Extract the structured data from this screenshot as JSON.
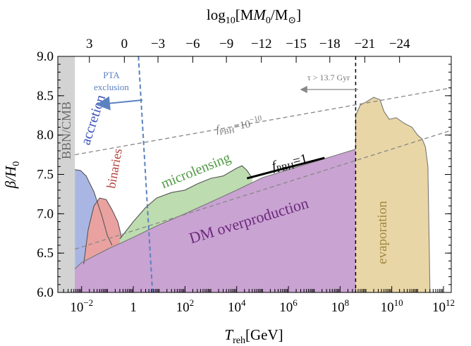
{
  "chart_data": {
    "type": "area",
    "xscale": "log",
    "xlabel_main": "T",
    "xlabel_sub": "reh",
    "xlabel_unit": "[GeV]",
    "ylabel_main": "β/H",
    "ylabel_sub": "0",
    "toplabel_pre": "log",
    "toplabel_sub": "10",
    "toplabel_post": "[M",
    "toplabel_sub2": "0",
    "toplabel_mid": "/M",
    "toplabel_sub3": "⊙",
    "toplabel_end": "]",
    "xlim": [
      0.0012,
      2000000000000.0
    ],
    "ylim": [
      6.0,
      9.0
    ],
    "x_ticks": [
      {
        "value": 0.01,
        "base": "10",
        "exp": "−2"
      },
      {
        "value": 1,
        "base": "1",
        "exp": ""
      },
      {
        "value": 100,
        "base": "10",
        "exp": "2"
      },
      {
        "value": 10000,
        "base": "10",
        "exp": "4"
      },
      {
        "value": 1000000,
        "base": "10",
        "exp": "6"
      },
      {
        "value": 100000000,
        "base": "10",
        "exp": "8"
      },
      {
        "value": 10000000000,
        "base": "10",
        "exp": "10"
      },
      {
        "value": 1000000000000,
        "base": "10",
        "exp": "12"
      }
    ],
    "y_ticks": [
      "6.0",
      "6.5",
      "7.0",
      "7.5",
      "8.0",
      "8.5",
      "9.0"
    ],
    "top_ticks": [
      {
        "label": "3",
        "x": 0.02
      },
      {
        "label": "0",
        "x": 0.45
      },
      {
        "label": "−3",
        "x": 9
      },
      {
        "label": "−6",
        "x": 200
      },
      {
        "label": "−9",
        "x": 4000
      },
      {
        "label": "−12",
        "x": 90000
      },
      {
        "label": "−15",
        "x": 2000000
      },
      {
        "label": "−18",
        "x": 40000000
      },
      {
        "label": "−21",
        "x": 900000000
      },
      {
        "label": "−24",
        "x": 20000000000
      }
    ],
    "bbn_cmb": {
      "x_max": 0.0055,
      "label": "BBN/CMB",
      "color": "#d3d3d3"
    },
    "pta": {
      "x": 2.3,
      "label_line1": "PTA",
      "label_line2": "exclusion",
      "color": "#5b82c0"
    },
    "tau_line": {
      "x": 400000000,
      "label": "τ > 13.7 Gyr"
    },
    "f_pbh_lines": [
      {
        "label_main": "f",
        "label_sub": "PBH",
        "label_value": "=10",
        "label_exp": "−10",
        "points": [
          [
            0.0055,
            7.75
          ],
          [
            2000000000000.0,
            8.6
          ]
        ]
      },
      {
        "label_main": "",
        "points": [
          [
            0.0055,
            6.55
          ],
          [
            2000000000000.0,
            8.06
          ]
        ]
      }
    ],
    "f_pbh_one": {
      "label_main": "f",
      "label_sub": "PBH",
      "label_value": "=1",
      "points": [
        [
          25000,
          7.45
        ],
        [
          25000000,
          7.71
        ]
      ]
    },
    "regions": [
      {
        "name": "DM overproduction",
        "color": "#c9a3d2",
        "boundary": [
          [
            0.0055,
            6.3
          ],
          [
            0.01,
            6.38
          ],
          [
            0.1,
            6.55
          ],
          [
            1,
            6.7
          ],
          [
            10,
            6.86
          ],
          [
            100,
            7.0
          ],
          [
            1000,
            7.15
          ],
          [
            10000,
            7.3
          ],
          [
            100000,
            7.46
          ],
          [
            1000000,
            7.56
          ],
          [
            10000000,
            7.66
          ],
          [
            100000000,
            7.76
          ],
          [
            400000000,
            7.82
          ]
        ]
      },
      {
        "name": "accretion",
        "color": "#a9b6e4",
        "boundary": [
          [
            0.0055,
            7.56
          ],
          [
            0.009,
            7.55
          ],
          [
            0.015,
            7.48
          ],
          [
            0.03,
            7.28
          ],
          [
            0.06,
            6.98
          ],
          [
            0.1,
            6.72
          ],
          [
            0.15,
            6.6
          ]
        ]
      },
      {
        "name": "binaries",
        "color": "#e9a2a0",
        "boundary": [
          [
            0.012,
            6.36
          ],
          [
            0.018,
            6.8
          ],
          [
            0.03,
            7.1
          ],
          [
            0.05,
            7.2
          ],
          [
            0.09,
            7.18
          ],
          [
            0.15,
            7.05
          ],
          [
            0.25,
            6.9
          ],
          [
            0.35,
            6.7
          ]
        ]
      },
      {
        "name": "microlensing",
        "color": "#bddcb0",
        "boundary": [
          [
            0.3,
            6.68
          ],
          [
            1,
            6.9
          ],
          [
            3,
            7.08
          ],
          [
            8,
            7.2
          ],
          [
            30,
            7.27
          ],
          [
            100,
            7.3
          ],
          [
            300,
            7.38
          ],
          [
            1000,
            7.45
          ],
          [
            3000,
            7.48
          ],
          [
            10000,
            7.58
          ],
          [
            16000,
            7.61
          ],
          [
            25000,
            7.55
          ],
          [
            40000,
            7.45
          ]
        ]
      },
      {
        "name": "evaporation",
        "color": "#e9d6a6",
        "boundary": [
          [
            400000000,
            7.82
          ],
          [
            400000000,
            8.25
          ],
          [
            600000000,
            8.38
          ],
          [
            1000000000,
            8.42
          ],
          [
            2000000000,
            8.48
          ],
          [
            3500000000,
            8.45
          ],
          [
            5000000000,
            8.3
          ],
          [
            8000000000,
            8.2
          ],
          [
            15000000000,
            8.22
          ],
          [
            30000000000,
            8.15
          ],
          [
            60000000000,
            8.1
          ],
          [
            100000000000,
            8.0
          ],
          [
            150000000000,
            7.95
          ],
          [
            200000000000,
            7.85
          ],
          [
            250000000000,
            7.6
          ],
          [
            300000000000,
            6.0
          ]
        ]
      }
    ]
  }
}
